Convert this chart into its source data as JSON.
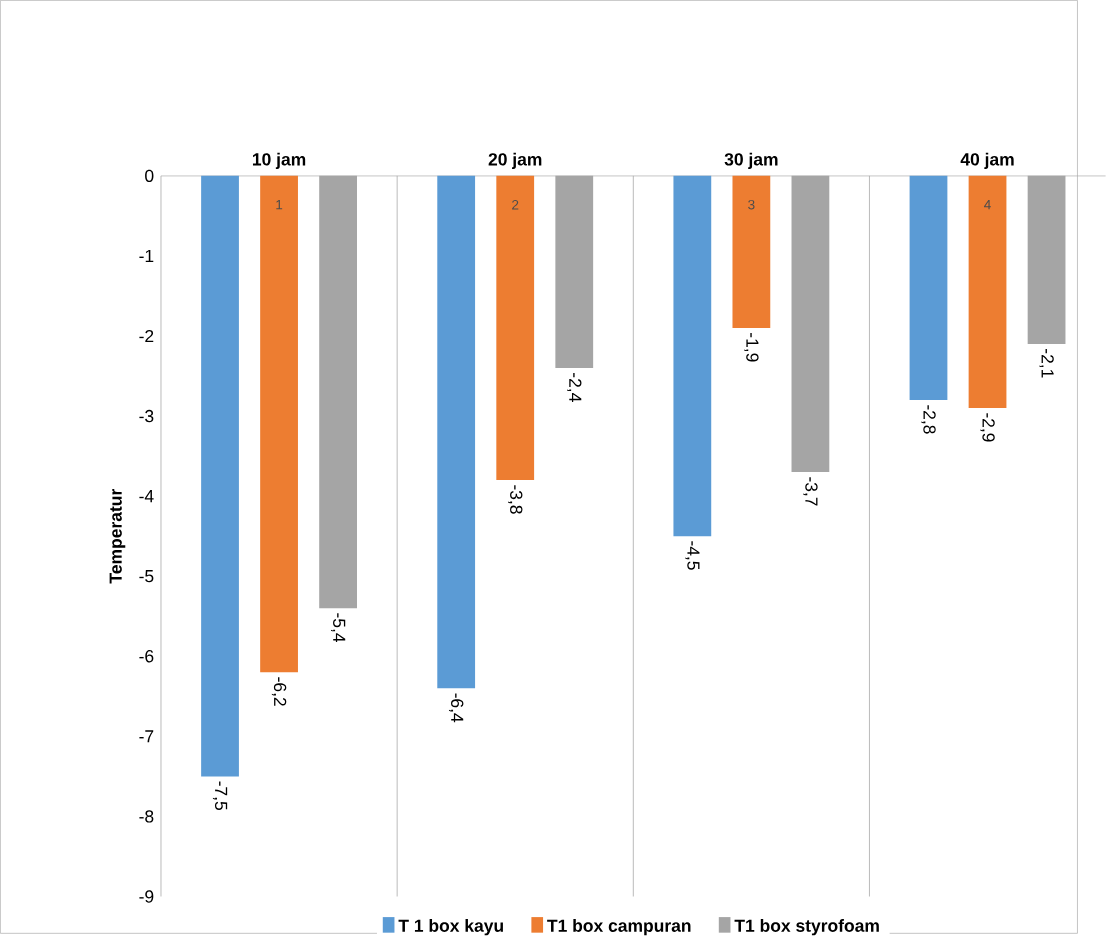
{
  "chart_data": {
    "type": "bar",
    "categories": [
      "10 jam",
      "20 jam",
      "30 jam",
      "40 jam"
    ],
    "ylabel": "Temperatur",
    "ylim": [
      -9,
      0
    ],
    "yticks": [
      -9,
      -8,
      -7,
      -6,
      -5,
      -4,
      -3,
      -2,
      -1,
      0
    ],
    "series": [
      {
        "name": "T 1 box kayu",
        "color": "#5b9bd5",
        "values": [
          -7.5,
          -6.4,
          -4.5,
          -2.8
        ],
        "value_labels": [
          "-7,5",
          "-6,4",
          "-4,5",
          "-2,8"
        ]
      },
      {
        "name": "T1 box campuran",
        "color": "#ed7d31",
        "values": [
          -6.2,
          -3.8,
          -1.9,
          -2.9
        ],
        "value_labels": [
          "-6,2",
          "-3,8",
          "-1,9",
          "-2,9"
        ]
      },
      {
        "name": "T1 box styrofoam",
        "color": "#a5a5a5",
        "values": [
          -5.4,
          -2.4,
          -3.7,
          -2.1
        ],
        "value_labels": [
          "-5,4",
          "-2,4",
          "-3,7",
          "-2,1"
        ]
      }
    ],
    "annotations": [
      "1",
      "2",
      "3",
      "4"
    ],
    "grid": "x",
    "legend": "bottom"
  }
}
